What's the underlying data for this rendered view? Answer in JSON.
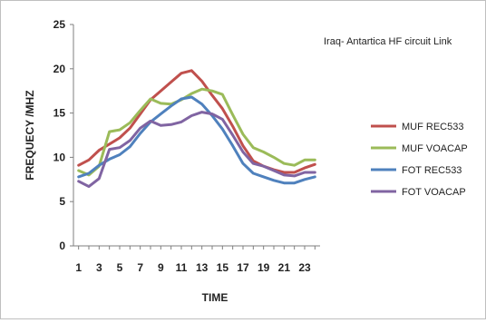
{
  "chart_data": {
    "type": "line",
    "title": "Iraq- Antartica HF circuit Link",
    "xlabel": "TIME",
    "ylabel": "FREQUECY /MHZ",
    "x": [
      1,
      2,
      3,
      4,
      5,
      6,
      7,
      8,
      9,
      10,
      11,
      12,
      13,
      14,
      15,
      16,
      17,
      18,
      19,
      20,
      21,
      22,
      23,
      24
    ],
    "x_ticks": [
      1,
      3,
      5,
      7,
      9,
      11,
      13,
      15,
      17,
      19,
      21,
      23
    ],
    "xlim": [
      0.5,
      24.5
    ],
    "ylim": [
      0,
      25
    ],
    "y_ticks": [
      0,
      5,
      10,
      15,
      20,
      25
    ],
    "grid": false,
    "legend": "right",
    "series": [
      {
        "name": "MUF REC533",
        "color": "#c0504d",
        "values": [
          9.1,
          9.7,
          10.8,
          11.5,
          12.2,
          13.3,
          14.9,
          16.5,
          17.5,
          18.5,
          19.5,
          19.8,
          18.6,
          17.0,
          15.5,
          13.5,
          11.3,
          9.6,
          9.0,
          8.6,
          8.3,
          8.3,
          8.8,
          9.2
        ]
      },
      {
        "name": "MUF VOACAP",
        "color": "#9bbb59",
        "values": [
          8.5,
          8.0,
          9.0,
          12.9,
          13.1,
          13.9,
          15.3,
          16.6,
          16.1,
          16.0,
          16.5,
          17.2,
          17.7,
          17.5,
          17.1,
          14.8,
          12.6,
          11.1,
          10.6,
          10.0,
          9.3,
          9.1,
          9.7,
          9.7
        ]
      },
      {
        "name": "FOT REC533",
        "color": "#4f81bd",
        "values": [
          7.8,
          8.2,
          9.1,
          9.8,
          10.3,
          11.2,
          12.7,
          14.0,
          14.9,
          15.8,
          16.6,
          16.8,
          16.0,
          14.7,
          13.2,
          11.3,
          9.3,
          8.2,
          7.8,
          7.4,
          7.1,
          7.1,
          7.5,
          7.8
        ]
      },
      {
        "name": "FOT VOACAP",
        "color": "#8064a2",
        "values": [
          7.3,
          6.7,
          7.6,
          10.9,
          11.1,
          11.9,
          13.3,
          14.1,
          13.6,
          13.7,
          14.0,
          14.7,
          15.1,
          14.9,
          14.3,
          12.5,
          10.6,
          9.3,
          9.0,
          8.5,
          8.0,
          7.9,
          8.3,
          8.3
        ]
      }
    ]
  }
}
